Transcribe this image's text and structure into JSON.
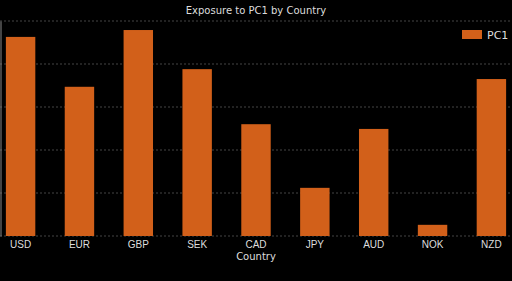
{
  "chart_data": {
    "type": "bar",
    "title": "Exposure to PC1 by Country",
    "x_label": "Country",
    "categories": [
      "USD",
      "EUR",
      "GBP",
      "SEK",
      "CAD",
      "JPY",
      "AUD",
      "NOK",
      "NZD"
    ],
    "series": [
      {
        "name": "PC1",
        "color": "#d2601a",
        "values": [
          4.63,
          3.47,
          4.79,
          3.88,
          2.6,
          1.12,
          2.49,
          0.26,
          3.65
        ]
      }
    ],
    "ylim": [
      0,
      5
    ],
    "yticks": [
      0,
      1,
      2,
      3,
      4,
      5
    ],
    "grid": true,
    "legend": "upper right",
    "tick_labels": "x"
  }
}
